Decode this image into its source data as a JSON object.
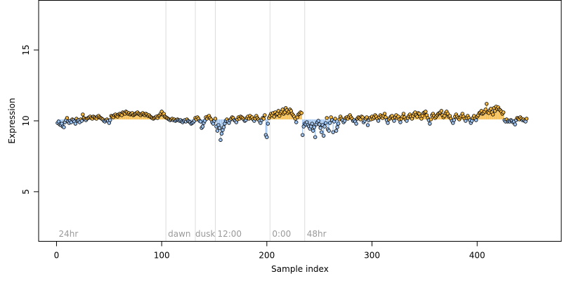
{
  "chart_data": {
    "type": "scatter",
    "xlabel": "Sample index",
    "ylabel": "Expression",
    "xlim": [
      -17,
      480
    ],
    "ylim": [
      1.5,
      18.5
    ],
    "xticks": [
      0,
      100,
      200,
      300,
      400
    ],
    "yticks": [
      5,
      10,
      15
    ],
    "baseline": 10.1,
    "grid": false,
    "vlines": [
      104,
      132,
      151,
      203,
      236
    ],
    "annotations": [
      {
        "x": 2,
        "label": "24hr"
      },
      {
        "x": 106,
        "label": "dawn"
      },
      {
        "x": 132,
        "label": "dusk"
      },
      {
        "x": 153,
        "label": "12:00"
      },
      {
        "x": 205,
        "label": "0:00"
      },
      {
        "x": 238,
        "label": "48hr"
      }
    ],
    "colors": {
      "above": "#f5b942",
      "below": "#9ec4f2",
      "point_edge": "#000000",
      "vline": "#dcdcdc",
      "annotation": "#9a9a9a"
    },
    "values": [
      9.85,
      9.95,
      9.75,
      9.7,
      9.8,
      9.6,
      9.55,
      9.9,
      10.05,
      10.2,
      9.95,
      9.85,
      10.0,
      9.9,
      10.1,
      10.05,
      9.95,
      9.8,
      10.15,
      10.0,
      10.05,
      9.9,
      10.1,
      10.0,
      10.45,
      10.2,
      10.1,
      10.05,
      10.15,
      10.2,
      10.25,
      10.3,
      10.2,
      10.15,
      10.3,
      10.25,
      10.2,
      10.15,
      10.3,
      10.35,
      10.25,
      10.2,
      10.15,
      10.1,
      10.0,
      9.95,
      10.05,
      10.1,
      10.0,
      9.85,
      10.05,
      10.35,
      10.3,
      10.25,
      10.4,
      10.45,
      10.35,
      10.3,
      10.45,
      10.5,
      10.45,
      10.4,
      10.6,
      10.55,
      10.5,
      10.65,
      10.6,
      10.5,
      10.55,
      10.45,
      10.5,
      10.55,
      10.4,
      10.45,
      10.5,
      10.55,
      10.6,
      10.5,
      10.45,
      10.4,
      10.5,
      10.55,
      10.45,
      10.4,
      10.5,
      10.45,
      10.35,
      10.4,
      10.3,
      10.25,
      10.2,
      10.15,
      10.2,
      10.25,
      10.3,
      10.2,
      10.35,
      10.4,
      10.5,
      10.65,
      10.45,
      10.5,
      10.3,
      10.25,
      10.2,
      10.15,
      10.1,
      10.05,
      10.1,
      10.15,
      10.05,
      10.1,
      10.0,
      10.05,
      10.1,
      10.05,
      10.0,
      10.05,
      9.95,
      9.9,
      10.0,
      10.05,
      9.95,
      10.1,
      10.0,
      9.95,
      9.9,
      9.8,
      9.85,
      9.9,
      10.0,
      10.2,
      10.1,
      10.25,
      10.15,
      10.0,
      9.95,
      9.5,
      9.6,
      9.85,
      10.0,
      10.25,
      10.15,
      10.3,
      10.35,
      10.2,
      10.1,
      9.9,
      9.8,
      10.0,
      10.15,
      9.6,
      9.3,
      9.7,
      9.5,
      8.65,
      9.1,
      9.35,
      9.55,
      9.8,
      10.0,
      10.1,
      9.95,
      9.85,
      10.05,
      10.15,
      10.25,
      10.2,
      10.05,
      10.0,
      9.9,
      10.1,
      10.25,
      10.15,
      10.3,
      10.25,
      10.2,
      10.1,
      10.0,
      10.05,
      10.2,
      10.3,
      10.15,
      10.35,
      10.2,
      10.25,
      10.1,
      10.0,
      10.15,
      10.35,
      10.2,
      10.1,
      10.0,
      9.85,
      10.05,
      10.2,
      10.15,
      10.4,
      9.0,
      8.85,
      9.8,
      10.2,
      10.35,
      10.5,
      10.4,
      10.55,
      10.3,
      10.6,
      10.45,
      10.5,
      10.7,
      10.35,
      10.55,
      10.65,
      10.8,
      10.5,
      10.6,
      10.9,
      10.75,
      10.55,
      10.65,
      10.8,
      10.7,
      10.5,
      10.4,
      10.3,
      10.15,
      9.9,
      10.25,
      10.45,
      10.5,
      10.6,
      10.55,
      9.0,
      9.6,
      9.8,
      9.75,
      9.9,
      9.7,
      9.6,
      9.45,
      9.6,
      9.8,
      9.3,
      9.55,
      8.85,
      9.75,
      9.9,
      10.0,
      9.75,
      9.5,
      9.2,
      9.7,
      8.95,
      9.6,
      9.85,
      10.2,
      9.4,
      9.3,
      9.85,
      10.25,
      10.05,
      9.2,
      9.95,
      10.15,
      9.3,
      9.55,
      9.8,
      10.1,
      10.3,
      10.15,
      10.05,
      9.9,
      10.0,
      10.2,
      10.25,
      10.15,
      10.3,
      10.4,
      10.25,
      10.15,
      10.0,
      10.05,
      9.95,
      9.8,
      10.15,
      10.25,
      10.2,
      10.1,
      10.3,
      10.25,
      9.9,
      10.0,
      10.15,
      10.25,
      9.7,
      10.05,
      10.2,
      10.1,
      10.3,
      10.15,
      10.25,
      10.4,
      10.3,
      10.15,
      10.0,
      10.25,
      10.4,
      10.3,
      10.2,
      10.35,
      10.5,
      10.25,
      10.05,
      9.85,
      10.1,
      10.2,
      10.3,
      10.35,
      10.15,
      10.0,
      10.25,
      10.4,
      10.2,
      10.3,
      10.1,
      9.9,
      10.15,
      10.3,
      10.5,
      10.25,
      10.1,
      10.0,
      10.2,
      10.35,
      10.45,
      10.3,
      10.15,
      10.35,
      10.5,
      10.6,
      10.4,
      10.3,
      10.55,
      10.5,
      10.3,
      10.15,
      10.35,
      10.55,
      10.6,
      10.65,
      10.4,
      10.2,
      10.05,
      9.8,
      10.1,
      10.4,
      10.5,
      10.35,
      10.2,
      10.3,
      10.4,
      10.5,
      10.55,
      10.6,
      10.7,
      10.4,
      10.25,
      10.35,
      10.55,
      10.65,
      10.5,
      10.3,
      10.35,
      10.15,
      10.0,
      9.85,
      10.05,
      10.3,
      10.45,
      10.3,
      10.2,
      10.1,
      10.25,
      10.35,
      10.5,
      10.3,
      10.15,
      10.0,
      10.2,
      10.35,
      10.2,
      10.05,
      9.85,
      10.0,
      10.2,
      10.35,
      10.15,
      10.05,
      10.3,
      10.4,
      10.55,
      10.6,
      10.7,
      10.5,
      10.55,
      10.65,
      10.8,
      11.2,
      10.6,
      10.55,
      10.75,
      10.85,
      10.6,
      10.45,
      10.9,
      10.7,
      11.0,
      10.85,
      10.95,
      10.8,
      10.75,
      10.65,
      10.5,
      10.6,
      10.05,
      9.95,
      10.1,
      9.95,
      10.0,
      9.95,
      10.05,
      10.0,
      9.9,
      9.95,
      9.75,
      10.05,
      10.2,
      10.15,
      10.1,
      10.25,
      10.15,
      10.05,
      10.1,
      10.0,
      9.95,
      10.15
    ]
  }
}
